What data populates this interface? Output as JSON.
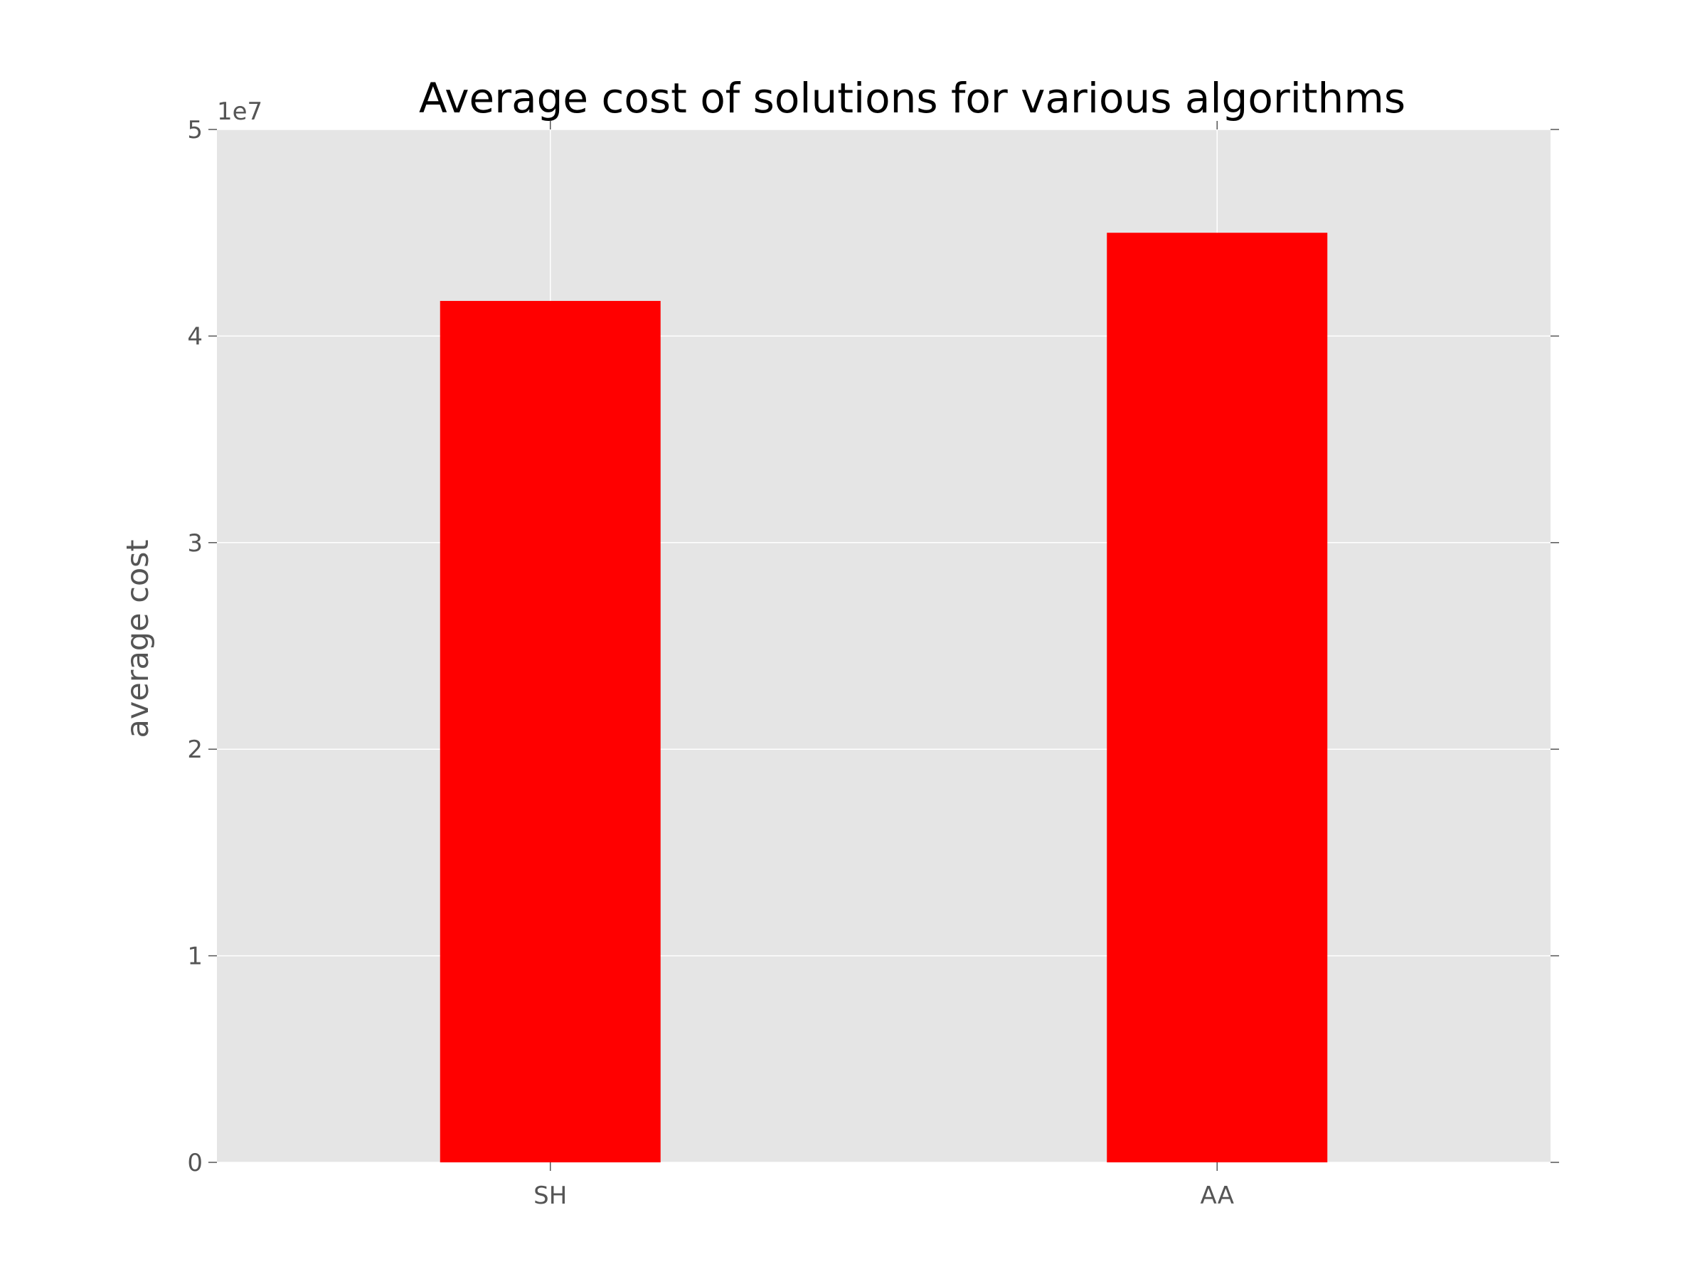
{
  "chart_data": {
    "type": "bar",
    "title": "Average cost of solutions for various algorithms",
    "xlabel": "",
    "ylabel": "average cost",
    "categories": [
      "SH",
      "AA"
    ],
    "values": [
      41700000,
      45000000
    ],
    "ylim": [
      0,
      50000000
    ],
    "y_ticks": [
      0,
      10000000,
      20000000,
      30000000,
      40000000,
      50000000
    ],
    "y_tick_labels": [
      "0",
      "1",
      "2",
      "3",
      "4",
      "5"
    ],
    "y_offset_label": "1e7",
    "grid": true,
    "bar_color": "#ff0000",
    "plot_background": "#e5e5e5",
    "grid_color": "#ffffff"
  }
}
